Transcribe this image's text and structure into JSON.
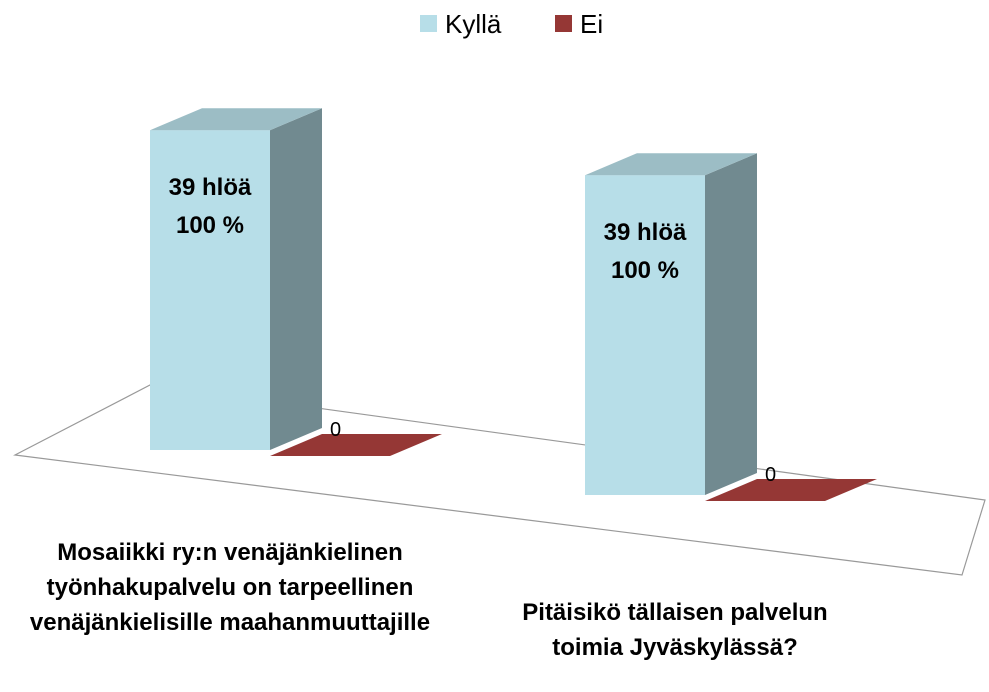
{
  "chart_data": {
    "type": "bar3d",
    "categories": [
      "Mosaiikki ry:n venäjänkielinen työnhakupalvelu on tarpeellinen venäjänkielisille maahanmuuttajille",
      "Pitäisikö tällaisen palvelun toimia Jyväskylässä?"
    ],
    "series": [
      {
        "name": "Kyllä",
        "color": "#b7dee8",
        "values": [
          39,
          39
        ],
        "value_labels": [
          "39 hlöä\n100 %",
          "39 hlöä\n100 %"
        ]
      },
      {
        "name": "Ei",
        "color": "#953735",
        "values": [
          0,
          0
        ]
      }
    ],
    "ylim": [
      0,
      40
    ],
    "legend": "top"
  }
}
